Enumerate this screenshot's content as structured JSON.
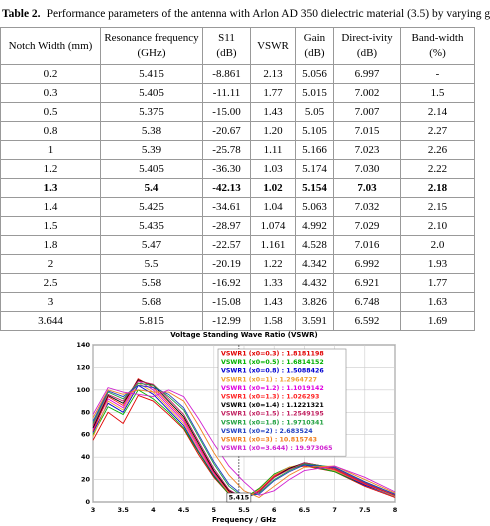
{
  "table": {
    "caption_label": "Table 2.",
    "caption": "Performance parameters of the antenna with Arlon AD 350 dielectric material (3.5) by varying g",
    "header": [
      [
        "Notch Width (mm)"
      ],
      [
        "Resonance frequency",
        "(GHz)"
      ],
      [
        "S11",
        "(dB)"
      ],
      [
        "VSWR"
      ],
      [
        "Gain",
        "(dB)"
      ],
      [
        "Direct-ivity",
        "(dB)"
      ],
      [
        "Band-width",
        "(%)"
      ]
    ],
    "rows": [
      [
        "0.2",
        "5.415",
        "-8.861",
        "2.13",
        "5.056",
        "6.997",
        "-"
      ],
      [
        "0.3",
        "5.405",
        "-11.11",
        "1.77",
        "5.015",
        "7.002",
        "1.5"
      ],
      [
        "0.5",
        "5.375",
        "-15.00",
        "1.43",
        "5.05",
        "7.007",
        "2.14"
      ],
      [
        "0.8",
        "5.38",
        "-20.67",
        "1.20",
        "5.105",
        "7.015",
        "2.27"
      ],
      [
        "1",
        "5.39",
        "-25.78",
        "1.11",
        "5.166",
        "7.023",
        "2.26"
      ],
      [
        "1.2",
        "5.405",
        "-36.30",
        "1.03",
        "5.174",
        "7.030",
        "2.22"
      ],
      [
        "1.3",
        "5.4",
        "-42.13",
        "1.02",
        "5.154",
        "7.03",
        "2.18"
      ],
      [
        "1.4",
        "5.425",
        "-34.61",
        "1.04",
        "5.063",
        "7.032",
        "2.15"
      ],
      [
        "1.5",
        "5.435",
        "-28.97",
        "1.074",
        "4.992",
        "7.029",
        "2.10"
      ],
      [
        "1.8",
        "5.47",
        "-22.57",
        "1.161",
        "4.528",
        "7.016",
        "2.0"
      ],
      [
        "2",
        "5.5",
        "-20.19",
        "1.22",
        "4.342",
        "6.992",
        "1.93"
      ],
      [
        "2.5",
        "5.58",
        "-16.92",
        "1.33",
        "4.432",
        "6.921",
        "1.77"
      ],
      [
        "3",
        "5.68",
        "-15.08",
        "1.43",
        "3.826",
        "6.748",
        "1.63"
      ],
      [
        "3.644",
        "5.815",
        "-12.99",
        "1.58",
        "3.591",
        "6.592",
        "1.69"
      ]
    ],
    "highlight_row": 6
  },
  "chart_data": {
    "type": "line",
    "title": "Voltage Standing Wave Ratio (VSWR)",
    "xlabel": "Frequency / GHz",
    "x": [
      3,
      3.25,
      3.5,
      3.75,
      4,
      4.25,
      4.5,
      4.75,
      5,
      5.25,
      5.5,
      5.75,
      6,
      6.25,
      6.5,
      7,
      7.5,
      8
    ],
    "xlim": [
      3,
      8
    ],
    "xticks": [
      3,
      3.5,
      4,
      4.5,
      5,
      5.5,
      6,
      6.5,
      7,
      7.5,
      8
    ],
    "ylim": [
      0,
      140
    ],
    "yticks": [
      0,
      20,
      40,
      60,
      80,
      100,
      120,
      140
    ],
    "grid": true,
    "annotation_x": 5.415,
    "series": [
      {
        "name": "VSWR1 (x0=0.3) : 1.8181198",
        "color": "#e00000",
        "values": [
          55,
          80,
          70,
          95,
          90,
          78,
          65,
          42,
          22,
          7,
          3,
          12,
          24,
          30,
          32,
          27,
          14,
          4
        ]
      },
      {
        "name": "VSWR1 (x0=0.5) : 1.6814152",
        "color": "#00b000",
        "values": [
          60,
          85,
          78,
          100,
          92,
          80,
          66,
          44,
          23,
          7,
          3,
          12,
          25,
          31,
          33,
          27,
          15,
          5
        ]
      },
      {
        "name": "VSWR1 (x0=0.8) : 1.5088426",
        "color": "#0000d0",
        "values": [
          62,
          88,
          80,
          104,
          96,
          82,
          68,
          45,
          24,
          8,
          2,
          11,
          24,
          31,
          33,
          28,
          15,
          5
        ]
      },
      {
        "name": "VSWR1 (x0=1) : 1.2964727",
        "color": "#f0a030",
        "values": [
          58,
          90,
          82,
          106,
          98,
          84,
          70,
          46,
          25,
          8,
          2,
          11,
          24,
          31,
          34,
          28,
          16,
          5
        ]
      },
      {
        "name": "VSWR1 (x0=1.2) : 1.1019142",
        "color": "#e000e0",
        "values": [
          65,
          92,
          84,
          108,
          100,
          86,
          72,
          48,
          26,
          9,
          2,
          10,
          23,
          30,
          34,
          29,
          16,
          6
        ]
      },
      {
        "name": "VSWR1 (x0=1.3) : 1.026293",
        "color": "#ff2020",
        "values": [
          63,
          94,
          86,
          110,
          102,
          88,
          74,
          50,
          27,
          9,
          2,
          10,
          23,
          30,
          34,
          29,
          16,
          6
        ]
      },
      {
        "name": "VSWR1 (x0=1.4) : 1.1221321",
        "color": "#000000",
        "values": [
          66,
          95,
          88,
          109,
          104,
          90,
          76,
          52,
          28,
          10,
          3,
          9,
          22,
          30,
          35,
          30,
          17,
          6
        ]
      },
      {
        "name": "VSWR1 (x0=1.5) : 1.2549195",
        "color": "#c02060",
        "values": [
          68,
          96,
          90,
          108,
          105,
          92,
          78,
          54,
          30,
          11,
          3,
          9,
          22,
          29,
          35,
          30,
          17,
          6
        ]
      },
      {
        "name": "VSWR1 (x0=1.8) : 1.9710341",
        "color": "#20a040",
        "values": [
          70,
          98,
          92,
          106,
          104,
          94,
          82,
          58,
          34,
          14,
          4,
          8,
          20,
          28,
          34,
          31,
          18,
          7
        ]
      },
      {
        "name": "VSWR1 (x0=2) : 2.683524",
        "color": "#2040c0",
        "values": [
          72,
          99,
          94,
          104,
          102,
          96,
          84,
          60,
          36,
          16,
          5,
          7,
          19,
          27,
          33,
          31,
          18,
          7
        ]
      },
      {
        "name": "VSWR1 (x0=3) : 10.815743",
        "color": "#f08020",
        "values": [
          75,
          100,
          96,
          100,
          98,
          98,
          90,
          68,
          44,
          24,
          10,
          4,
          14,
          24,
          31,
          32,
          20,
          8
        ]
      },
      {
        "name": "VSWR1 (x0=3.644) : 19.973065",
        "color": "#d020d0",
        "values": [
          78,
          102,
          98,
          96,
          94,
          100,
          94,
          74,
          52,
          32,
          18,
          6,
          10,
          20,
          28,
          32,
          22,
          9
        ]
      }
    ]
  }
}
